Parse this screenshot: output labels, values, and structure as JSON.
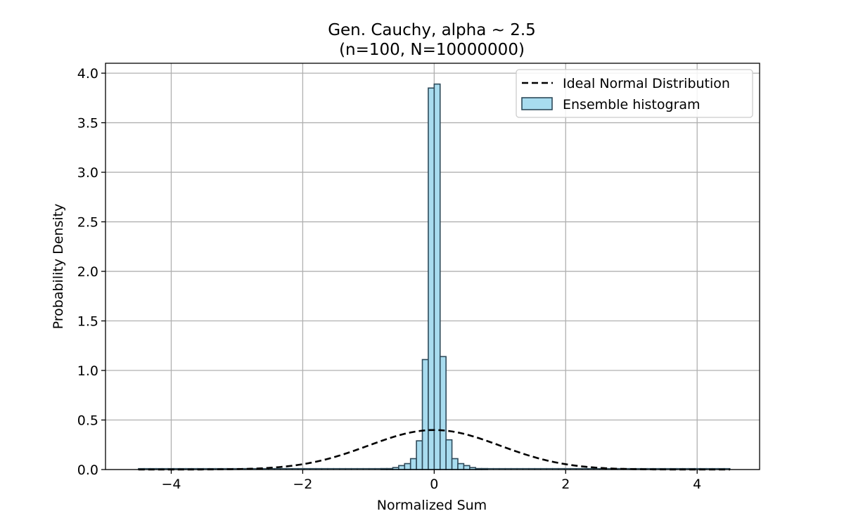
{
  "chart_data": {
    "type": "bar",
    "title_line1": "Gen. Cauchy, alpha ~ 2.5",
    "title_line2": "(n=100, N=10000000)",
    "xlabel": "Normalized Sum",
    "ylabel": "Probability Density",
    "xlim": [
      -5.0,
      4.95
    ],
    "ylim": [
      0,
      4.1
    ],
    "xticks": [
      -4,
      -2,
      0,
      2,
      4
    ],
    "xtick_labels": [
      "−4",
      "−2",
      "0",
      "2",
      "4"
    ],
    "yticks": [
      0.0,
      0.5,
      1.0,
      1.5,
      2.0,
      2.5,
      3.0,
      3.5,
      4.0
    ],
    "ytick_labels": [
      "0.0",
      "0.5",
      "1.0",
      "1.5",
      "2.0",
      "2.5",
      "3.0",
      "3.5",
      "4.0"
    ],
    "grid": true,
    "legend_position": "top-right",
    "series": [
      {
        "name": "Ideal Normal Distribution",
        "kind": "line",
        "style": "dashed",
        "color": "#000000",
        "function": "standard normal pdf",
        "x_range": [
          -4.5,
          4.5
        ]
      },
      {
        "name": "Ensemble histogram",
        "kind": "histogram",
        "color": "#a8dcef",
        "edge_color": "#2e4a5a",
        "bin_width": 0.09,
        "bin_range": [
          -4.5,
          4.5
        ],
        "bins": [
          {
            "x0": -0.81,
            "x1": -0.72,
            "value": 0.01
          },
          {
            "x0": -0.72,
            "x1": -0.63,
            "value": 0.01
          },
          {
            "x0": -0.63,
            "x1": -0.54,
            "value": 0.02
          },
          {
            "x0": -0.54,
            "x1": -0.45,
            "value": 0.04
          },
          {
            "x0": -0.45,
            "x1": -0.36,
            "value": 0.06
          },
          {
            "x0": -0.36,
            "x1": -0.27,
            "value": 0.11
          },
          {
            "x0": -0.27,
            "x1": -0.18,
            "value": 0.29
          },
          {
            "x0": -0.18,
            "x1": -0.09,
            "value": 1.11
          },
          {
            "x0": -0.09,
            "x1": 0.0,
            "value": 3.85
          },
          {
            "x0": 0.0,
            "x1": 0.09,
            "value": 3.89
          },
          {
            "x0": 0.09,
            "x1": 0.18,
            "value": 1.14
          },
          {
            "x0": 0.18,
            "x1": 0.27,
            "value": 0.3
          },
          {
            "x0": 0.27,
            "x1": 0.36,
            "value": 0.11
          },
          {
            "x0": 0.36,
            "x1": 0.45,
            "value": 0.06
          },
          {
            "x0": 0.45,
            "x1": 0.54,
            "value": 0.04
          },
          {
            "x0": 0.54,
            "x1": 0.63,
            "value": 0.02
          },
          {
            "x0": 0.63,
            "x1": 0.72,
            "value": 0.01
          },
          {
            "x0": 0.72,
            "x1": 0.81,
            "value": 0.01
          }
        ]
      }
    ]
  }
}
